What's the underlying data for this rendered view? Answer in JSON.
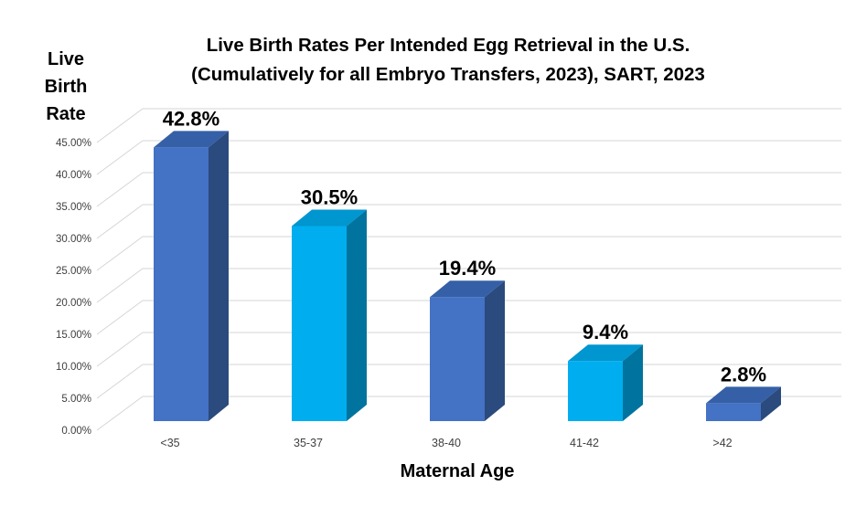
{
  "chart_data": {
    "type": "bar",
    "style": "3d-column",
    "title_line1": "Live Birth Rates Per Intended Egg Retrieval in the U.S.",
    "title_line2": "(Cumulatively for all Embryo Transfers, 2023), SART, 2023",
    "ylabel_lines": [
      "Live",
      "Birth",
      "Rate"
    ],
    "xlabel": "Maternal Age",
    "categories": [
      "<35",
      "35-37",
      "38-40",
      "41-42",
      ">42"
    ],
    "values": [
      42.8,
      30.5,
      19.4,
      9.4,
      2.8
    ],
    "data_labels": [
      "42.8%",
      "30.5%",
      "19.4%",
      "9.4%",
      "2.8%"
    ],
    "y_ticks": [
      {
        "label": "45.00%",
        "value": 45
      },
      {
        "label": "40.00%",
        "value": 40
      },
      {
        "label": "35.00%",
        "value": 35
      },
      {
        "label": "30.00%",
        "value": 30
      },
      {
        "label": "25.00%",
        "value": 25
      },
      {
        "label": "20.00%",
        "value": 20
      },
      {
        "label": "15.00%",
        "value": 15
      },
      {
        "label": "10.00%",
        "value": 10
      },
      {
        "label": "5.00%",
        "value": 5
      },
      {
        "label": "0.00%",
        "value": 0
      }
    ],
    "ylim": [
      0,
      45
    ],
    "grid": true,
    "legend": "none",
    "colors": {
      "dark_blue": {
        "front": "#4472C4",
        "top": "#3560A7",
        "side": "#2B4A7D"
      },
      "cyan": {
        "front": "#00AEEF",
        "top": "#0096D0",
        "side": "#00749E"
      },
      "bar_color_sequence": [
        "dark_blue",
        "cyan",
        "dark_blue",
        "cyan",
        "dark_blue"
      ],
      "gridline": "#D6D6D6",
      "axis_text": "#404040",
      "title_text": "#000000",
      "background": "#FFFFFF"
    }
  }
}
